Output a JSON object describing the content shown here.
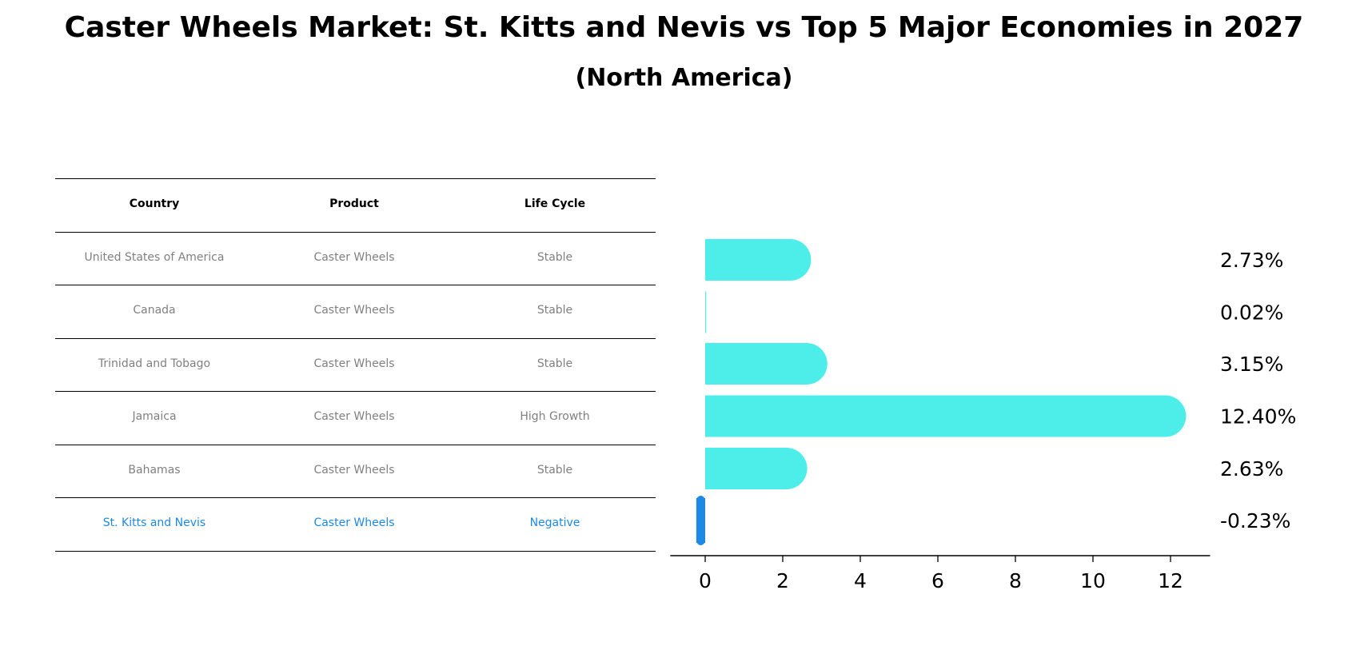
{
  "title": "Caster Wheels Market: St. Kitts and Nevis vs Top 5 Major Economies in 2027",
  "subtitle": "(North America)",
  "table": {
    "headers": [
      "Country",
      "Product",
      "Life Cycle"
    ],
    "rows": [
      [
        "United States of America",
        "Caster Wheels",
        "Stable"
      ],
      [
        "Canada",
        "Caster Wheels",
        "Stable"
      ],
      [
        "Trinidad and Tobago",
        "Caster Wheels",
        "Stable"
      ],
      [
        "Jamaica",
        "Caster Wheels",
        "High Growth"
      ],
      [
        "Bahamas",
        "Caster Wheels",
        "Stable"
      ],
      [
        "St. Kitts and Nevis",
        "Caster Wheels",
        "Negative"
      ]
    ],
    "highlight_row": 5
  },
  "colors": {
    "bar": "#4deeea",
    "highlight": "#1e88e5",
    "muted_text": "#808080"
  },
  "chart_data": {
    "type": "bar",
    "orientation": "horizontal",
    "categories": [
      "United States of America",
      "Canada",
      "Trinidad and Tobago",
      "Jamaica",
      "Bahamas",
      "St. Kitts and Nevis"
    ],
    "values": [
      2.73,
      0.02,
      3.15,
      12.4,
      2.63,
      -0.23
    ],
    "value_labels": [
      "2.73%",
      "0.02%",
      "3.15%",
      "12.40%",
      "2.63%",
      "-0.23%"
    ],
    "xlim": [
      -0.9,
      13.0
    ],
    "xticks": [
      0,
      2,
      4,
      6,
      8,
      10,
      12
    ],
    "grid": false,
    "highlight_index": 5
  }
}
